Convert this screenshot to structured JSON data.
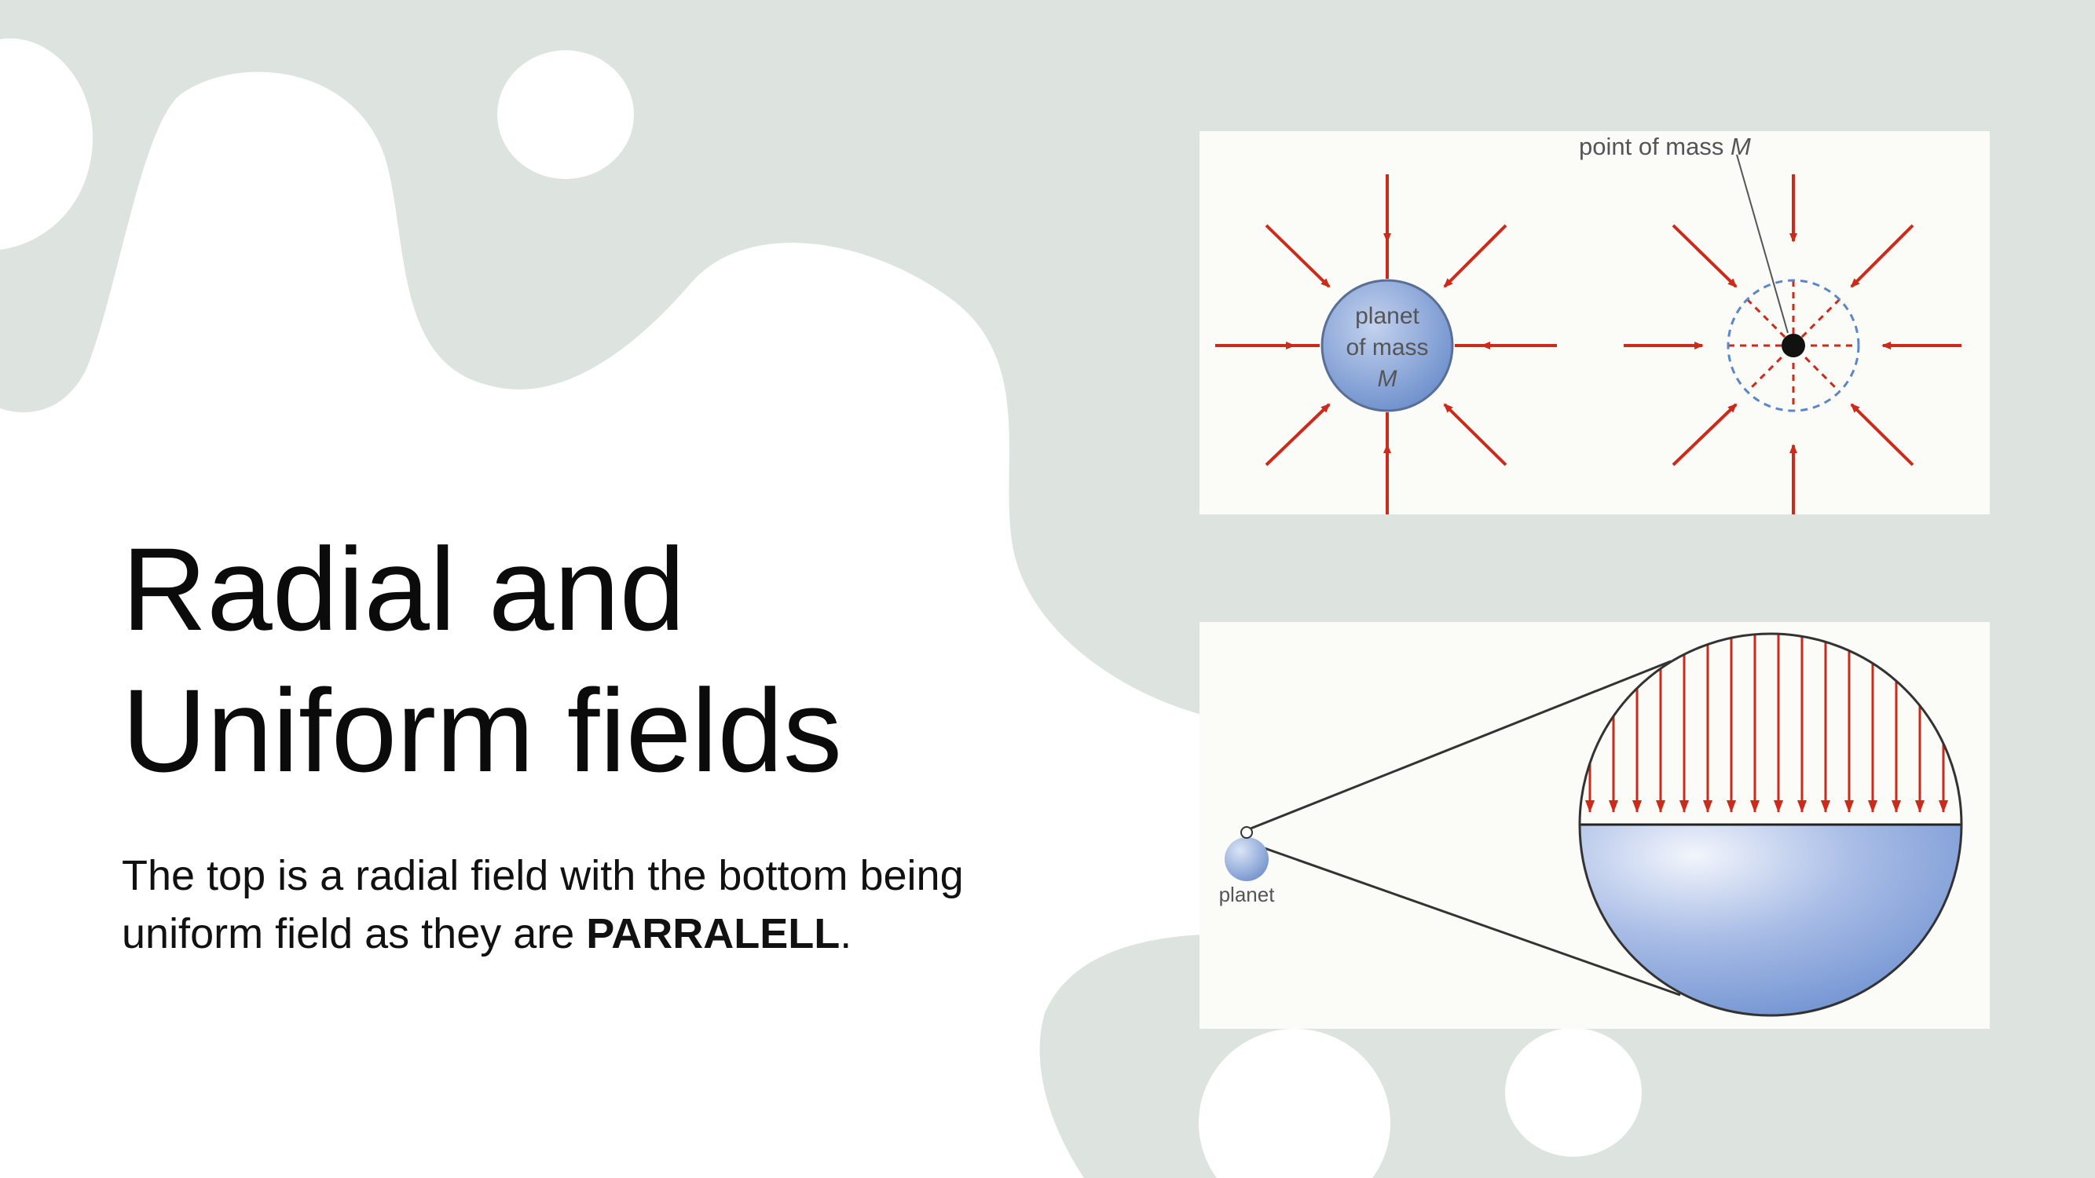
{
  "slide": {
    "title_line1": "Radial and",
    "title_line2": "Uniform fields",
    "body_prefix": "The top is a radial field with the bottom being uniform field as they are ",
    "body_bold": "PARRALELL",
    "body_suffix": "."
  },
  "radial_diagram": {
    "point_label": "point of mass ",
    "point_label_symbol": "M",
    "planet_label_line1": "planet",
    "planet_label_line2": "of mass",
    "planet_label_symbol": "M"
  },
  "uniform_diagram": {
    "planet_label": "planet"
  },
  "colors": {
    "background": "#dde4df",
    "blob": "#ffffff",
    "field_arrow": "#cc2a1a",
    "planet_fill": "#7f9fd6"
  }
}
